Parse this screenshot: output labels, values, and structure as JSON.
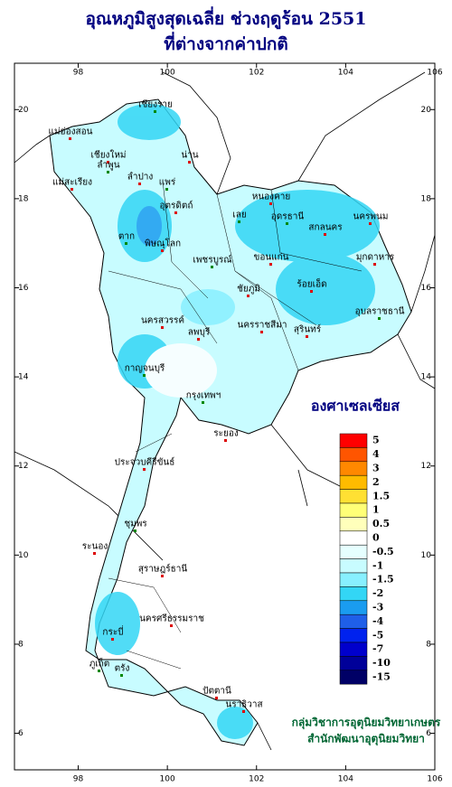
{
  "title": [
    "อุณหภูมิสูงสุดเฉลี่ย ช่วงฤดูร้อน 2551",
    "ที่ต่างจากค่าปกติ"
  ],
  "map": {
    "lonlim": [
      96.57,
      106
    ],
    "latlim": [
      5.18,
      21.04
    ],
    "lonticks": [
      98,
      100,
      102,
      104,
      106
    ],
    "latticks": [
      6,
      8,
      10,
      12,
      14,
      16,
      18,
      20
    ]
  },
  "legend": {
    "title": "องศาเซลเซียส",
    "items": [
      {
        "label": "5",
        "color": "#ff0000"
      },
      {
        "label": "4",
        "color": "#ff5500"
      },
      {
        "label": "3",
        "color": "#ff8800"
      },
      {
        "label": "2",
        "color": "#ffbb00"
      },
      {
        "label": "1.5",
        "color": "#ffe033"
      },
      {
        "label": "1",
        "color": "#ffff77"
      },
      {
        "label": "0.5",
        "color": "#ffffbb"
      },
      {
        "label": "0",
        "color": "#ffffff"
      },
      {
        "label": "-0.5",
        "color": "#e6ffff"
      },
      {
        "label": "-1",
        "color": "#c8fcff"
      },
      {
        "label": "-1.5",
        "color": "#88f0ff"
      },
      {
        "label": "-2",
        "color": "#33d6f5"
      },
      {
        "label": "-3",
        "color": "#1a9cf0"
      },
      {
        "label": "-4",
        "color": "#1f5fe8"
      },
      {
        "label": "-5",
        "color": "#0022ee"
      },
      {
        "label": "-7",
        "color": "#0000cc"
      },
      {
        "label": "-10",
        "color": "#000099"
      },
      {
        "label": "-15",
        "color": "#000066"
      }
    ]
  },
  "places": [
    "เชียงราย",
    "แม่ฮ่องสอน",
    "เชียงใหม่",
    "ลำพูน",
    "ลำปาง",
    "น่าน",
    "แพร่",
    "แม่สะเรียง",
    "อุตรดิตถ์",
    "ตาก",
    "พิษณุโลก",
    "หนองคาย",
    "อุดรธานี",
    "สกลนคร",
    "นครพนม",
    "เลย",
    "ขอนแก่น",
    "มุกดาหาร",
    "เพชรบูรณ์",
    "ชัยภูมิ",
    "ร้อยเอ็ด",
    "อุบลราชธานี",
    "นครสวรรค์",
    "ลพบุรี",
    "กาญจนบุรี",
    "นครราชสีมา",
    "สุรินทร์",
    "กรุงเทพฯ",
    "ระยอง",
    "ประจวบคีรีขันธ์",
    "ชุมพร",
    "ระนอง",
    "สุราษฎร์ธานี",
    "ภูเก็ต",
    "กระบี่",
    "นครศรีธรรมราช",
    "ตรัง",
    "ปัตตานี",
    "นราธิวาส"
  ],
  "credits": [
    "กลุ่มวิชาการอุตุนิยมวิทยาเกษตร",
    "สำนักพัฒนาอุตุนิยมวิทยา"
  ]
}
